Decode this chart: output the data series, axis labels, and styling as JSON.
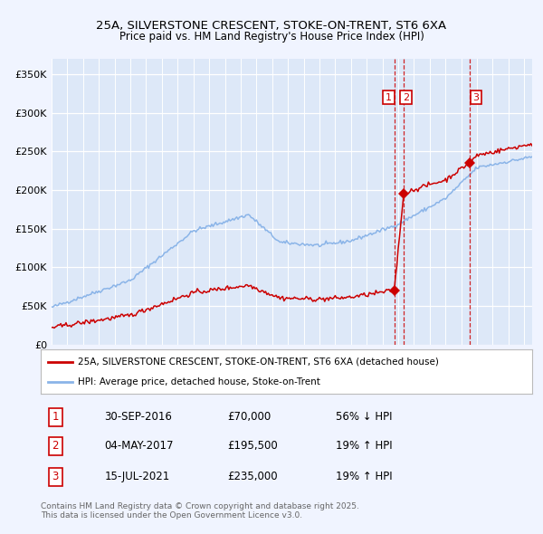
{
  "title_line1": "25A, SILVERSTONE CRESCENT, STOKE-ON-TRENT, ST6 6XA",
  "title_line2": "Price paid vs. HM Land Registry's House Price Index (HPI)",
  "background_color": "#f0f4ff",
  "plot_bg_color": "#dde8f8",
  "grid_color": "#ffffff",
  "hpi_color": "#8ab4e8",
  "price_color": "#cc0000",
  "ylim": [
    0,
    370000
  ],
  "yticks": [
    0,
    50000,
    100000,
    150000,
    200000,
    250000,
    300000,
    350000
  ],
  "ytick_labels": [
    "£0",
    "£50K",
    "£100K",
    "£150K",
    "£200K",
    "£250K",
    "£300K",
    "£350K"
  ],
  "transaction1_price": 70000,
  "transaction1_label": "30-SEP-2016",
  "transaction1_price_label": "£70,000",
  "transaction1_hpi_label": "56% ↓ HPI",
  "transaction2_price": 195500,
  "transaction2_label": "04-MAY-2017",
  "transaction2_price_label": "£195,500",
  "transaction2_hpi_label": "19% ↑ HPI",
  "transaction3_price": 235000,
  "transaction3_label": "15-JUL-2021",
  "transaction3_price_label": "£235,000",
  "transaction3_hpi_label": "19% ↑ HPI",
  "legend_label_price": "25A, SILVERSTONE CRESCENT, STOKE-ON-TRENT, ST6 6XA (detached house)",
  "legend_label_hpi": "HPI: Average price, detached house, Stoke-on-Trent",
  "footnote": "Contains HM Land Registry data © Crown copyright and database right 2025.\nThis data is licensed under the Open Government Licence v3.0."
}
